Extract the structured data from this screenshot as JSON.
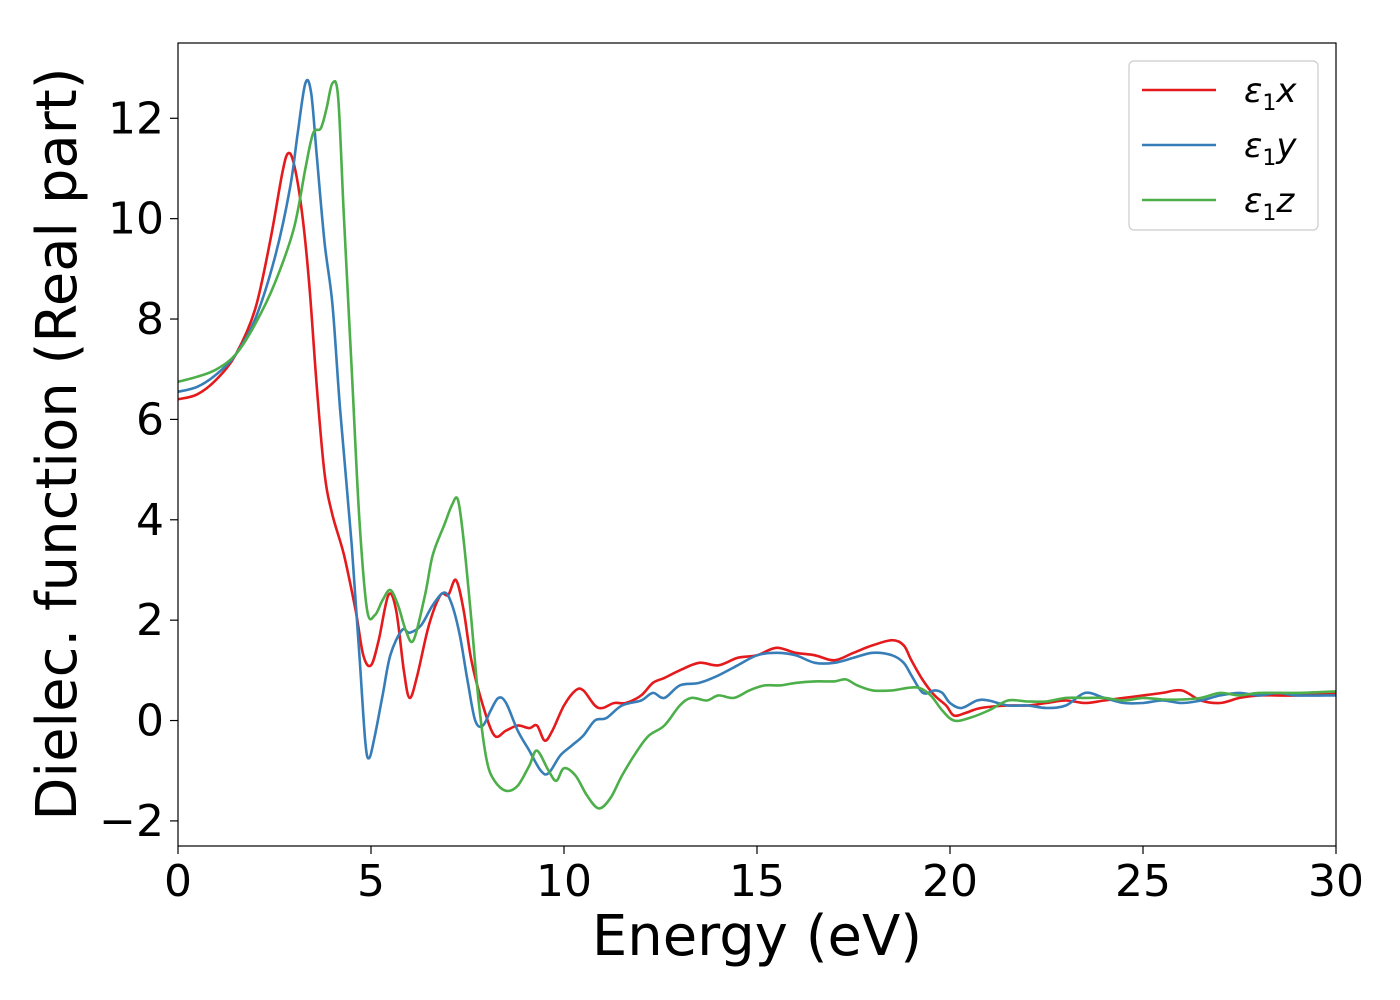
{
  "chart_data": {
    "type": "line",
    "xlabel": "Energy (eV)",
    "ylabel": "Dielec. function (Real part)",
    "xlim": [
      0,
      30
    ],
    "ylim": [
      -2.5,
      13.5
    ],
    "xticks": [
      0,
      5,
      10,
      15,
      20,
      25,
      30
    ],
    "yticks": [
      -2,
      0,
      2,
      4,
      6,
      8,
      10,
      12
    ],
    "ytick_labels": [
      "−2",
      "0",
      "2",
      "4",
      "6",
      "8",
      "10",
      "12"
    ],
    "grid": false,
    "legend_position": "top-right",
    "series": [
      {
        "name": "ε1x",
        "legend": {
          "base": "ε",
          "sub": "1",
          "var": "x"
        },
        "color": "#e41a1c",
        "points": [
          [
            0,
            6.4
          ],
          [
            0.5,
            6.5
          ],
          [
            1,
            6.8
          ],
          [
            1.5,
            7.3
          ],
          [
            2,
            8.2
          ],
          [
            2.4,
            9.6
          ],
          [
            2.7,
            10.9
          ],
          [
            2.85,
            11.3
          ],
          [
            3.0,
            11.1
          ],
          [
            3.2,
            10.2
          ],
          [
            3.4,
            8.7
          ],
          [
            3.6,
            6.6
          ],
          [
            3.8,
            4.9
          ],
          [
            4.0,
            4.1
          ],
          [
            4.3,
            3.3
          ],
          [
            4.6,
            2.2
          ],
          [
            4.8,
            1.3
          ],
          [
            5.0,
            1.1
          ],
          [
            5.2,
            1.6
          ],
          [
            5.45,
            2.5
          ],
          [
            5.65,
            2.2
          ],
          [
            5.85,
            1.0
          ],
          [
            6.0,
            0.45
          ],
          [
            6.2,
            0.9
          ],
          [
            6.5,
            1.9
          ],
          [
            6.8,
            2.5
          ],
          [
            7.0,
            2.5
          ],
          [
            7.2,
            2.8
          ],
          [
            7.4,
            2.2
          ],
          [
            7.6,
            1.2
          ],
          [
            7.9,
            0.3
          ],
          [
            8.2,
            -0.3
          ],
          [
            8.5,
            -0.2
          ],
          [
            8.8,
            -0.1
          ],
          [
            9.1,
            -0.15
          ],
          [
            9.3,
            -0.1
          ],
          [
            9.5,
            -0.4
          ],
          [
            9.7,
            -0.2
          ],
          [
            10.0,
            0.3
          ],
          [
            10.3,
            0.6
          ],
          [
            10.5,
            0.6
          ],
          [
            10.8,
            0.3
          ],
          [
            11.0,
            0.25
          ],
          [
            11.3,
            0.35
          ],
          [
            11.6,
            0.35
          ],
          [
            12.0,
            0.5
          ],
          [
            12.3,
            0.75
          ],
          [
            12.6,
            0.85
          ],
          [
            13.0,
            1.0
          ],
          [
            13.5,
            1.15
          ],
          [
            14.0,
            1.1
          ],
          [
            14.5,
            1.25
          ],
          [
            15.0,
            1.3
          ],
          [
            15.5,
            1.45
          ],
          [
            16.0,
            1.35
          ],
          [
            16.5,
            1.3
          ],
          [
            17.0,
            1.2
          ],
          [
            17.5,
            1.35
          ],
          [
            18.0,
            1.5
          ],
          [
            18.5,
            1.6
          ],
          [
            18.8,
            1.5
          ],
          [
            19.0,
            1.2
          ],
          [
            19.3,
            0.8
          ],
          [
            19.6,
            0.5
          ],
          [
            19.9,
            0.3
          ],
          [
            20.1,
            0.1
          ],
          [
            20.4,
            0.15
          ],
          [
            20.8,
            0.25
          ],
          [
            21.5,
            0.3
          ],
          [
            22.0,
            0.3
          ],
          [
            22.5,
            0.35
          ],
          [
            23.0,
            0.4
          ],
          [
            23.5,
            0.35
          ],
          [
            24.0,
            0.4
          ],
          [
            24.5,
            0.45
          ],
          [
            25.0,
            0.5
          ],
          [
            25.5,
            0.55
          ],
          [
            26.0,
            0.6
          ],
          [
            26.5,
            0.4
          ],
          [
            27.0,
            0.35
          ],
          [
            27.5,
            0.45
          ],
          [
            28.0,
            0.5
          ],
          [
            29.0,
            0.5
          ],
          [
            30.0,
            0.55
          ]
        ]
      },
      {
        "name": "ε1y",
        "legend": {
          "base": "ε",
          "sub": "1",
          "var": "y"
        },
        "color": "#377eb8",
        "points": [
          [
            0,
            6.55
          ],
          [
            0.5,
            6.65
          ],
          [
            1,
            6.9
          ],
          [
            1.5,
            7.3
          ],
          [
            2,
            8.0
          ],
          [
            2.5,
            9.2
          ],
          [
            2.9,
            10.6
          ],
          [
            3.1,
            11.7
          ],
          [
            3.3,
            12.7
          ],
          [
            3.45,
            12.5
          ],
          [
            3.6,
            11.2
          ],
          [
            3.8,
            9.5
          ],
          [
            4.0,
            8.3
          ],
          [
            4.2,
            6.2
          ],
          [
            4.5,
            3.5
          ],
          [
            4.7,
            1.3
          ],
          [
            4.85,
            -0.4
          ],
          [
            4.95,
            -0.75
          ],
          [
            5.1,
            -0.3
          ],
          [
            5.3,
            0.5
          ],
          [
            5.5,
            1.3
          ],
          [
            5.8,
            1.8
          ],
          [
            6.0,
            1.75
          ],
          [
            6.3,
            1.9
          ],
          [
            6.6,
            2.3
          ],
          [
            6.9,
            2.55
          ],
          [
            7.1,
            2.3
          ],
          [
            7.3,
            1.7
          ],
          [
            7.5,
            0.8
          ],
          [
            7.7,
            0.0
          ],
          [
            7.9,
            -0.1
          ],
          [
            8.1,
            0.2
          ],
          [
            8.3,
            0.45
          ],
          [
            8.5,
            0.35
          ],
          [
            8.8,
            -0.2
          ],
          [
            9.1,
            -0.6
          ],
          [
            9.4,
            -1.0
          ],
          [
            9.6,
            -1.05
          ],
          [
            9.9,
            -0.7
          ],
          [
            10.2,
            -0.5
          ],
          [
            10.5,
            -0.3
          ],
          [
            10.8,
            0.0
          ],
          [
            11.1,
            0.05
          ],
          [
            11.5,
            0.3
          ],
          [
            12.0,
            0.4
          ],
          [
            12.3,
            0.55
          ],
          [
            12.6,
            0.45
          ],
          [
            13.0,
            0.7
          ],
          [
            13.5,
            0.75
          ],
          [
            14.0,
            0.9
          ],
          [
            14.5,
            1.1
          ],
          [
            15.0,
            1.3
          ],
          [
            15.5,
            1.35
          ],
          [
            16.0,
            1.3
          ],
          [
            16.5,
            1.15
          ],
          [
            17.0,
            1.15
          ],
          [
            17.5,
            1.25
          ],
          [
            18.0,
            1.35
          ],
          [
            18.5,
            1.3
          ],
          [
            18.8,
            1.15
          ],
          [
            19.0,
            0.9
          ],
          [
            19.3,
            0.55
          ],
          [
            19.6,
            0.6
          ],
          [
            19.8,
            0.55
          ],
          [
            20.0,
            0.35
          ],
          [
            20.3,
            0.25
          ],
          [
            20.7,
            0.4
          ],
          [
            21.0,
            0.4
          ],
          [
            21.5,
            0.3
          ],
          [
            22.0,
            0.3
          ],
          [
            22.5,
            0.25
          ],
          [
            23.0,
            0.3
          ],
          [
            23.5,
            0.55
          ],
          [
            24.0,
            0.45
          ],
          [
            24.5,
            0.35
          ],
          [
            25.0,
            0.35
          ],
          [
            25.5,
            0.4
          ],
          [
            26.0,
            0.35
          ],
          [
            26.5,
            0.4
          ],
          [
            27.0,
            0.5
          ],
          [
            27.5,
            0.55
          ],
          [
            28.0,
            0.5
          ],
          [
            28.5,
            0.55
          ],
          [
            29.0,
            0.5
          ],
          [
            30.0,
            0.5
          ]
        ]
      },
      {
        "name": "ε1z",
        "legend": {
          "base": "ε",
          "sub": "1",
          "var": "z"
        },
        "color": "#4daf4a",
        "points": [
          [
            0,
            6.75
          ],
          [
            0.5,
            6.85
          ],
          [
            1,
            7.0
          ],
          [
            1.5,
            7.3
          ],
          [
            2,
            7.9
          ],
          [
            2.5,
            8.7
          ],
          [
            3.0,
            9.8
          ],
          [
            3.3,
            11.0
          ],
          [
            3.5,
            11.7
          ],
          [
            3.7,
            11.8
          ],
          [
            3.85,
            12.2
          ],
          [
            4.0,
            12.7
          ],
          [
            4.15,
            12.4
          ],
          [
            4.3,
            10.0
          ],
          [
            4.5,
            7.0
          ],
          [
            4.7,
            4.0
          ],
          [
            4.9,
            2.2
          ],
          [
            5.1,
            2.1
          ],
          [
            5.3,
            2.4
          ],
          [
            5.5,
            2.6
          ],
          [
            5.7,
            2.3
          ],
          [
            5.9,
            1.8
          ],
          [
            6.1,
            1.6
          ],
          [
            6.4,
            2.5
          ],
          [
            6.6,
            3.3
          ],
          [
            6.9,
            3.9
          ],
          [
            7.1,
            4.3
          ],
          [
            7.25,
            4.4
          ],
          [
            7.4,
            3.6
          ],
          [
            7.6,
            2.0
          ],
          [
            7.8,
            0.3
          ],
          [
            8.0,
            -0.8
          ],
          [
            8.2,
            -1.2
          ],
          [
            8.5,
            -1.4
          ],
          [
            8.8,
            -1.3
          ],
          [
            9.1,
            -0.9
          ],
          [
            9.3,
            -0.6
          ],
          [
            9.6,
            -1.0
          ],
          [
            9.8,
            -1.2
          ],
          [
            10.0,
            -0.95
          ],
          [
            10.3,
            -1.1
          ],
          [
            10.6,
            -1.5
          ],
          [
            10.9,
            -1.75
          ],
          [
            11.2,
            -1.55
          ],
          [
            11.5,
            -1.1
          ],
          [
            11.9,
            -0.6
          ],
          [
            12.2,
            -0.3
          ],
          [
            12.6,
            -0.1
          ],
          [
            13.0,
            0.3
          ],
          [
            13.3,
            0.45
          ],
          [
            13.7,
            0.4
          ],
          [
            14.0,
            0.5
          ],
          [
            14.4,
            0.45
          ],
          [
            14.8,
            0.6
          ],
          [
            15.2,
            0.7
          ],
          [
            15.6,
            0.7
          ],
          [
            16.0,
            0.75
          ],
          [
            16.5,
            0.78
          ],
          [
            17.0,
            0.78
          ],
          [
            17.3,
            0.82
          ],
          [
            17.6,
            0.7
          ],
          [
            18.0,
            0.6
          ],
          [
            18.5,
            0.6
          ],
          [
            18.9,
            0.65
          ],
          [
            19.2,
            0.65
          ],
          [
            19.5,
            0.5
          ],
          [
            19.8,
            0.2
          ],
          [
            20.1,
            0.0
          ],
          [
            20.5,
            0.05
          ],
          [
            21.0,
            0.2
          ],
          [
            21.5,
            0.4
          ],
          [
            22.0,
            0.38
          ],
          [
            22.5,
            0.38
          ],
          [
            23.0,
            0.45
          ],
          [
            23.5,
            0.45
          ],
          [
            24.0,
            0.45
          ],
          [
            24.5,
            0.4
          ],
          [
            25.0,
            0.45
          ],
          [
            25.5,
            0.42
          ],
          [
            26.0,
            0.42
          ],
          [
            26.5,
            0.45
          ],
          [
            27.0,
            0.55
          ],
          [
            27.5,
            0.5
          ],
          [
            28.0,
            0.55
          ],
          [
            29.0,
            0.55
          ],
          [
            30.0,
            0.58
          ]
        ]
      }
    ]
  }
}
